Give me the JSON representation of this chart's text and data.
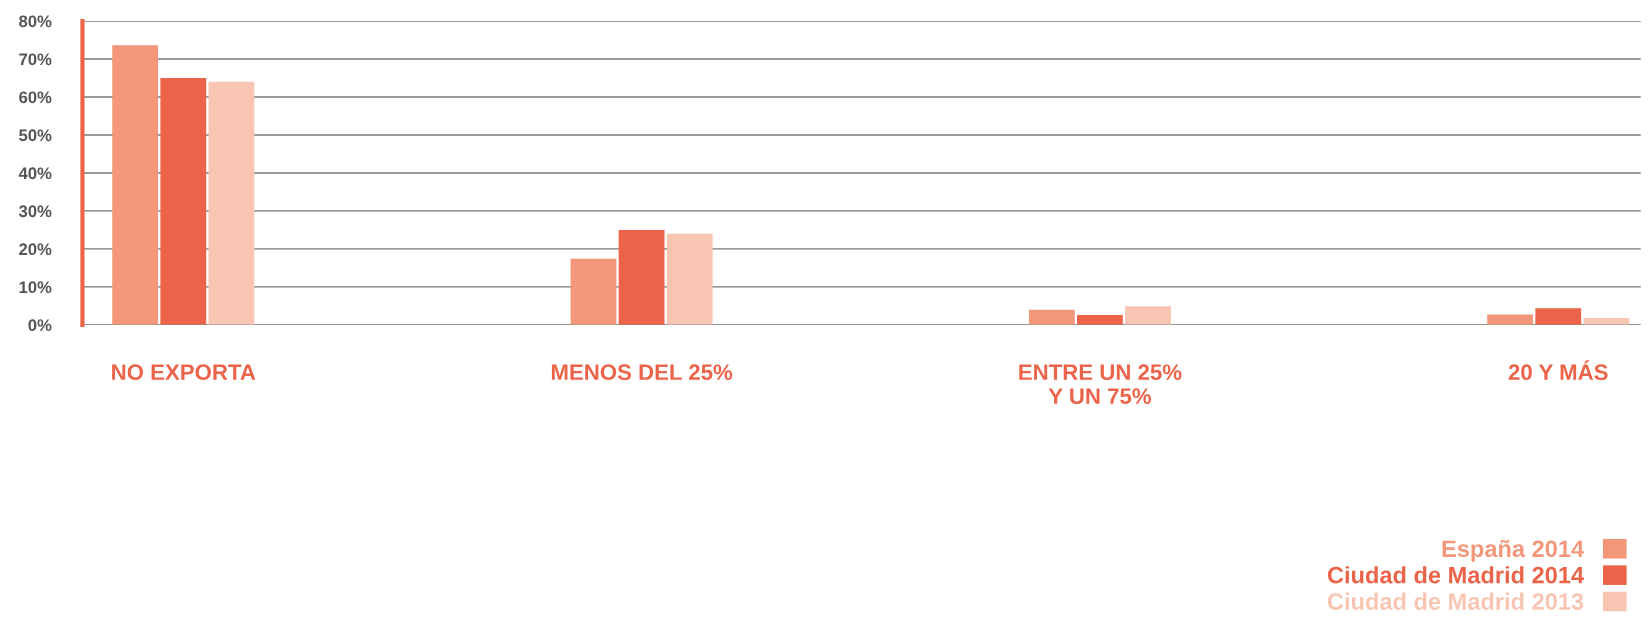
{
  "chart_data": {
    "type": "bar",
    "categories": [
      "NO EXPORTA",
      "MENOS DEL 25%",
      "ENTRE UN 25%\nY UN 75%",
      "20 Y MÁS"
    ],
    "series": [
      {
        "name": "España 2014",
        "color": "#f2977a",
        "values": [
          73.6,
          17.4,
          4.0,
          2.7
        ]
      },
      {
        "name": "Ciudad de Madrid 2014",
        "color": "#eb6348",
        "values": [
          65,
          25,
          2.6,
          4.4
        ]
      },
      {
        "name": "Ciudad de Madrid 2013",
        "color": "#f8c5b2",
        "values": [
          64,
          24,
          4.9,
          1.8
        ]
      }
    ],
    "ylim": [
      0,
      80
    ],
    "yticks": [
      {
        "value": 0,
        "label": "0%"
      },
      {
        "value": 10,
        "label": "10%"
      },
      {
        "value": 20,
        "label": "20%"
      },
      {
        "value": 30,
        "label": "30%"
      },
      {
        "value": 40,
        "label": "40%"
      },
      {
        "value": 50,
        "label": "50%"
      },
      {
        "value": 60,
        "label": "60%"
      },
      {
        "value": 70,
        "label": "70%"
      },
      {
        "value": 80,
        "label": "80%"
      }
    ],
    "grid": "y",
    "legend": "bottom right"
  }
}
